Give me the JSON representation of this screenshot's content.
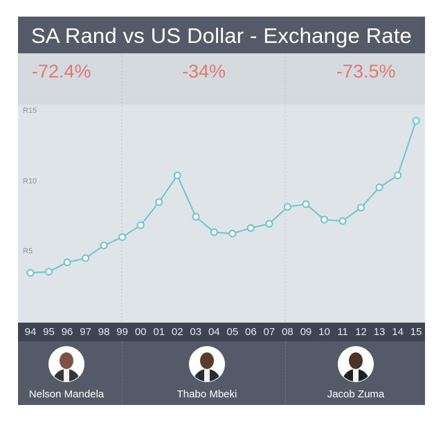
{
  "chart_data": {
    "type": "line",
    "title": "SA Rand vs US Dollar - Exchange Rate",
    "x": [
      "94",
      "95",
      "96",
      "97",
      "98",
      "99",
      "00",
      "01",
      "02",
      "03",
      "04",
      "05",
      "06",
      "07",
      "08",
      "09",
      "10",
      "11",
      "12",
      "13",
      "14",
      "15"
    ],
    "values": [
      3.55,
      3.63,
      4.3,
      4.6,
      5.5,
      6.1,
      6.95,
      8.6,
      10.5,
      7.55,
      6.45,
      6.35,
      6.75,
      7.05,
      8.25,
      8.45,
      7.35,
      7.25,
      8.2,
      9.65,
      10.5,
      14.4
    ],
    "y_ticks": [
      {
        "value": 5,
        "label": "R5"
      },
      {
        "value": 10,
        "label": "R10"
      },
      {
        "value": 15,
        "label": "R15"
      }
    ],
    "ylim": [
      0,
      15.6
    ],
    "line_color": "#6cc6cd",
    "grid": false
  },
  "terms": [
    {
      "change": "-72.4%",
      "leader": "Nelson Mandela",
      "from": "94",
      "to": "99"
    },
    {
      "change": "-34%",
      "leader": "Thabo Mbeki",
      "from": "99",
      "to": "08"
    },
    {
      "change": "-73.5%",
      "leader": "Jacob Zuma",
      "from": "09",
      "to": "15"
    }
  ],
  "colors": {
    "background": "#dfe4e8",
    "header": "#545a68",
    "axis_bar": "#3f4451",
    "percent": "#e07a70"
  }
}
